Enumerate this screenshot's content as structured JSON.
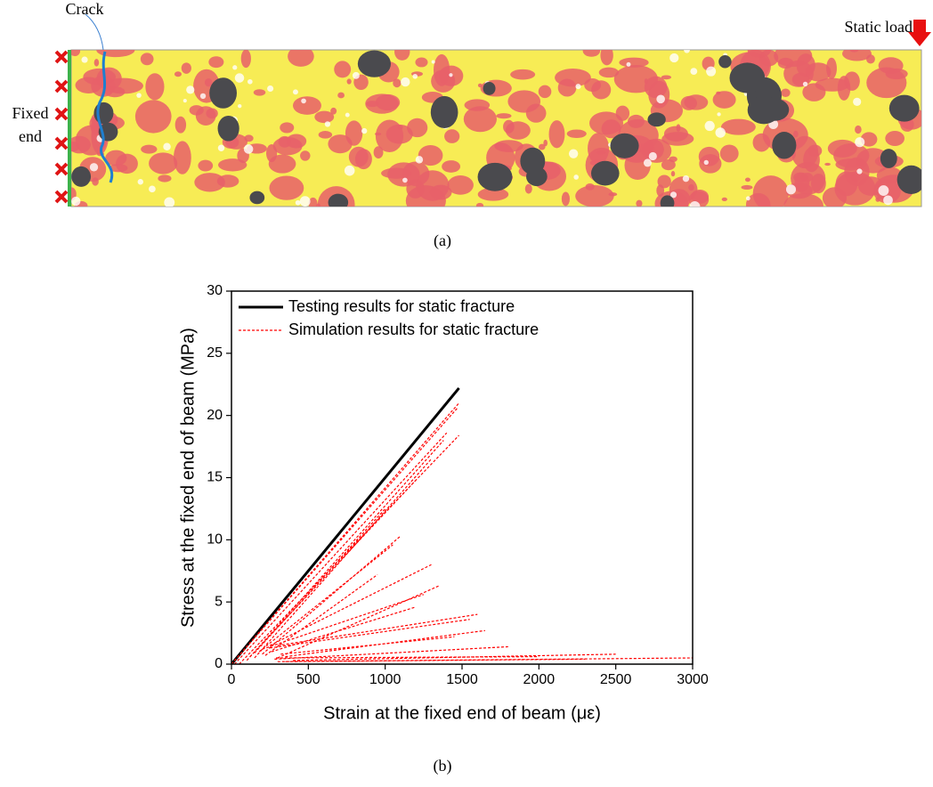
{
  "figure_a": {
    "crack_label": "Crack",
    "load_label": "Static load",
    "fixed_label": [
      "Fixed",
      "end"
    ],
    "caption": "(a)"
  },
  "chart_data": {
    "type": "line",
    "xlabel": "Strain at the fixed end of beam (με)",
    "ylabel": "Stress at the fixed end of beam (MPa)",
    "xlim": [
      0,
      3000
    ],
    "xticks": [
      0,
      500,
      1000,
      1500,
      2000,
      2500,
      3000
    ],
    "ylim": [
      0,
      30
    ],
    "yticks": [
      0,
      5,
      10,
      15,
      20,
      25,
      30
    ],
    "legend": "upper left",
    "series": [
      {
        "name": "Testing results for static fracture",
        "color": "#000000",
        "line_style": "solid",
        "x": [
          0,
          1480
        ],
        "values": [
          0,
          22.2
        ]
      },
      {
        "name": "Simulation results for static fracture",
        "color": "#ff0000",
        "line_style": "dashed",
        "x": [
          0,
          1480,
          null,
          0,
          1470,
          null,
          20,
          1400,
          null,
          50,
          1480,
          null,
          100,
          1380,
          null,
          150,
          1300,
          null,
          120,
          1200,
          null,
          150,
          1000,
          null,
          200,
          1100,
          null,
          180,
          1050,
          null,
          250,
          1300,
          null,
          220,
          950,
          null,
          300,
          1350,
          null,
          200,
          1250,
          null,
          260,
          1200,
          null,
          300,
          1600,
          null,
          250,
          1550,
          null,
          350,
          1650,
          null,
          320,
          1450,
          null,
          280,
          1800,
          null,
          290,
          2000,
          null,
          400,
          2500,
          null,
          300,
          3000,
          null,
          350,
          2300
        ],
        "values": [
          0,
          21.0,
          null,
          0,
          20.6,
          null,
          0,
          18.6,
          null,
          0,
          18.4,
          null,
          0.3,
          18.0,
          null,
          0.5,
          16.5,
          null,
          0.6,
          14.8,
          null,
          0.9,
          12.5,
          null,
          0.8,
          10.3,
          null,
          1,
          9.6,
          null,
          1.5,
          8.0,
          null,
          0.7,
          7.2,
          null,
          0.5,
          6.3,
          null,
          1.2,
          5.6,
          null,
          1.0,
          4.6,
          null,
          1.5,
          4.0,
          null,
          1.3,
          3.6,
          null,
          0.6,
          2.7,
          null,
          0.8,
          2.2,
          null,
          0.4,
          1.4,
          null,
          0.5,
          0.6,
          null,
          0.3,
          0.8,
          null,
          0.2,
          0.5,
          null,
          0.2,
          0.4
        ]
      }
    ]
  },
  "caption_b": "(b)"
}
